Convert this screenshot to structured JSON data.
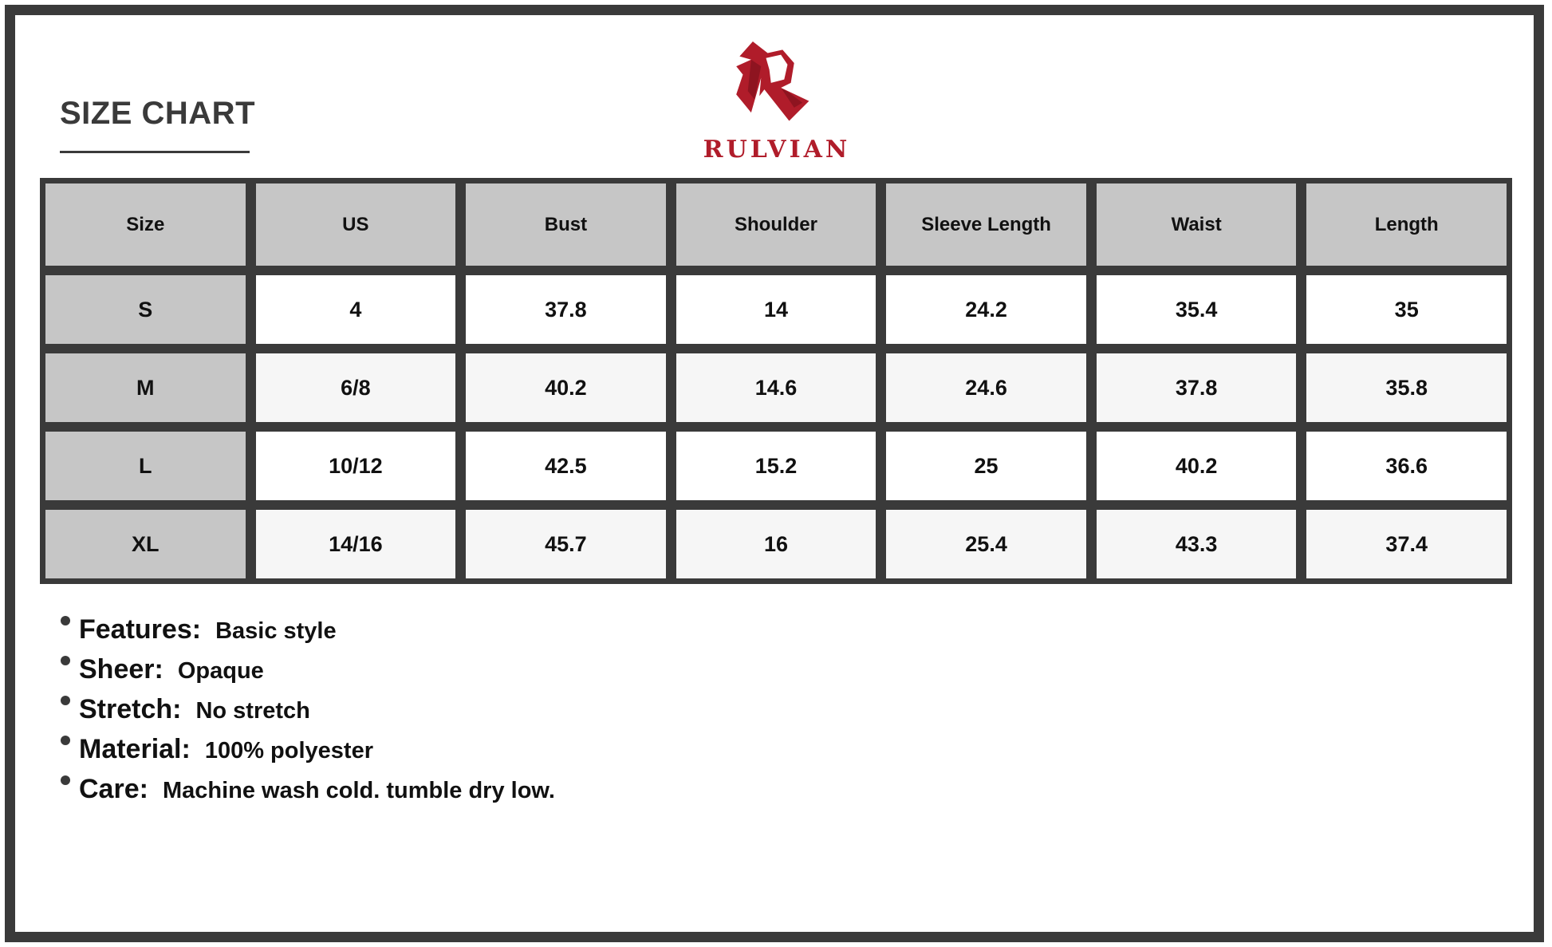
{
  "title": "SIZE CHART",
  "brand": {
    "name": "RULVIAN",
    "color": "#b01c2a",
    "icon": "stylized-r-logo"
  },
  "table": {
    "headers": [
      "Size",
      "US",
      "Bust",
      "Shoulder",
      "Sleeve Length",
      "Waist",
      "Length"
    ],
    "rows": [
      [
        "S",
        "4",
        "37.8",
        "14",
        "24.2",
        "35.4",
        "35"
      ],
      [
        "M",
        "6/8",
        "40.2",
        "14.6",
        "24.6",
        "37.8",
        "35.8"
      ],
      [
        "L",
        "10/12",
        "42.5",
        "15.2",
        "25",
        "40.2",
        "36.6"
      ],
      [
        "XL",
        "14/16",
        "45.7",
        "16",
        "25.4",
        "43.3",
        "37.4"
      ]
    ]
  },
  "features": [
    {
      "label": "Features:",
      "value": "Basic style"
    },
    {
      "label": "Sheer:",
      "value": "Opaque"
    },
    {
      "label": "Stretch:",
      "value": "No stretch"
    },
    {
      "label": "Material:",
      "value": "100% polyester"
    },
    {
      "label": "Care:",
      "value": "Machine wash cold. tumble dry low."
    }
  ],
  "colors": {
    "frame": "#3a3a3a",
    "header_bg": "#c6c6c6",
    "row_alt": "#f6f6f6"
  }
}
